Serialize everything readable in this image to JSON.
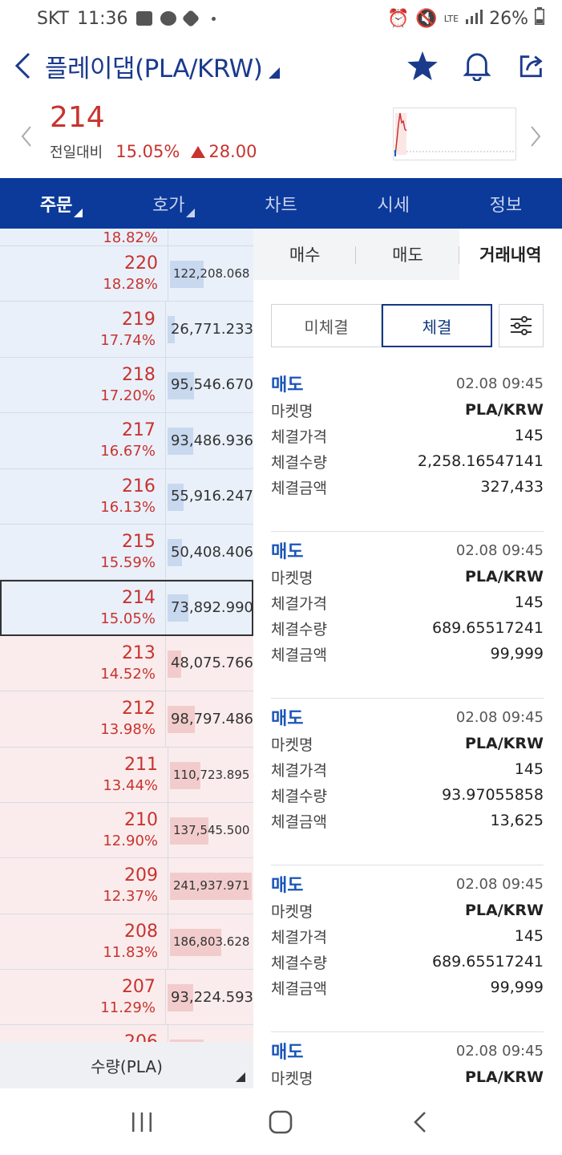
{
  "status_bar": {
    "carrier": "SKT",
    "time": "11:36",
    "battery": "26%",
    "network": "LTE"
  },
  "header": {
    "title": "플레이댑(PLA/KRW)"
  },
  "price": {
    "current": "214",
    "prev_label": "전일대비",
    "change_pct": "15.05%",
    "change_amt": "28.00"
  },
  "tabs": [
    {
      "label": "주문"
    },
    {
      "label": "호가"
    },
    {
      "label": "차트"
    },
    {
      "label": "시세"
    },
    {
      "label": "정보"
    }
  ],
  "orderbook": {
    "partial_top_rate": "18.82%",
    "rows": [
      {
        "side": "ask",
        "price": "220",
        "rate": "18.28%",
        "qty": "122,208.068",
        "fill": 0.4,
        "small": true
      },
      {
        "side": "ask",
        "price": "219",
        "rate": "17.74%",
        "qty": "26,771.233",
        "fill": 0.09,
        "small": false
      },
      {
        "side": "ask",
        "price": "218",
        "rate": "17.20%",
        "qty": "95,546.670",
        "fill": 0.32,
        "small": false
      },
      {
        "side": "ask",
        "price": "217",
        "rate": "16.67%",
        "qty": "93,486.936",
        "fill": 0.31,
        "small": false
      },
      {
        "side": "ask",
        "price": "216",
        "rate": "16.13%",
        "qty": "55,916.247",
        "fill": 0.19,
        "small": false
      },
      {
        "side": "ask",
        "price": "215",
        "rate": "15.59%",
        "qty": "50,408.406",
        "fill": 0.17,
        "small": false
      },
      {
        "side": "ask",
        "price": "214",
        "rate": "15.05%",
        "qty": "73,892.990",
        "fill": 0.25,
        "small": false,
        "current": true
      },
      {
        "side": "bid",
        "price": "213",
        "rate": "14.52%",
        "qty": "48,075.766",
        "fill": 0.16,
        "small": false
      },
      {
        "side": "bid",
        "price": "212",
        "rate": "13.98%",
        "qty": "98,797.486",
        "fill": 0.33,
        "small": false
      },
      {
        "side": "bid",
        "price": "211",
        "rate": "13.44%",
        "qty": "110,723.895",
        "fill": 0.37,
        "small": true
      },
      {
        "side": "bid",
        "price": "210",
        "rate": "12.90%",
        "qty": "137,545.500",
        "fill": 0.46,
        "small": true
      },
      {
        "side": "bid",
        "price": "209",
        "rate": "12.37%",
        "qty": "241,937.971",
        "fill": 0.98,
        "small": true
      },
      {
        "side": "bid",
        "price": "208",
        "rate": "11.83%",
        "qty": "186,803.628",
        "fill": 0.62,
        "small": true
      },
      {
        "side": "bid",
        "price": "207",
        "rate": "11.29%",
        "qty": "93,224.593",
        "fill": 0.31,
        "small": false
      }
    ],
    "partial_bottom_price": "206",
    "qty_unit_label": "수량(PLA)"
  },
  "right_panel": {
    "subtabs": [
      {
        "label": "매수"
      },
      {
        "label": "매도"
      },
      {
        "label": "거래내역"
      }
    ],
    "filters": [
      {
        "label": "미체결"
      },
      {
        "label": "체결"
      }
    ],
    "field_labels": {
      "market": "마켓명",
      "price": "체결가격",
      "qty": "체결수량",
      "amount": "체결금액"
    },
    "trades": [
      {
        "side": "매도",
        "time": "02.08 09:45",
        "market": "PLA/KRW",
        "price": "145",
        "qty": "2,258.16547141",
        "amount": "327,433"
      },
      {
        "side": "매도",
        "time": "02.08 09:45",
        "market": "PLA/KRW",
        "price": "145",
        "qty": "689.65517241",
        "amount": "99,999"
      },
      {
        "side": "매도",
        "time": "02.08 09:45",
        "market": "PLA/KRW",
        "price": "145",
        "qty": "93.97055858",
        "amount": "13,625"
      },
      {
        "side": "매도",
        "time": "02.08 09:45",
        "market": "PLA/KRW",
        "price": "145",
        "qty": "689.65517241",
        "amount": "99,999"
      },
      {
        "side": "매도",
        "time": "02.08 09:45",
        "market": "PLA/KRW"
      }
    ]
  },
  "colors": {
    "up": "#c8332e",
    "navy": "#0c3a9b",
    "sell_blue": "#1a55b8"
  }
}
